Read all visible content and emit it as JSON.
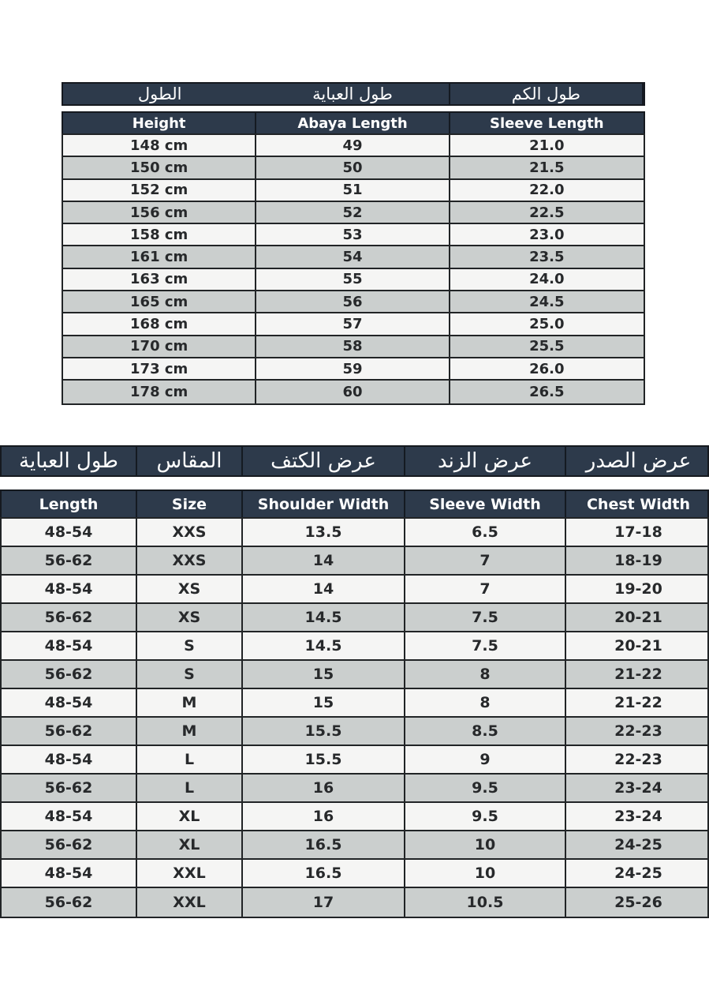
{
  "colors": {
    "header_navy": "#2d3a4b",
    "row_light": "#f5f5f4",
    "row_gray": "#cbcfce",
    "border_dark": "#212426",
    "header_text": "#ffffff",
    "cell_text": "#27292b",
    "page_background": "#ffffff"
  },
  "size_chart_length": {
    "headers_ar": [
      "الطول",
      "طول العباية",
      "طول الكم"
    ],
    "headers_en": [
      "Height",
      "Abaya Length",
      "Sleeve Length"
    ],
    "rows": [
      [
        "148 cm",
        "49",
        "21.0"
      ],
      [
        "150 cm",
        "50",
        "21.5"
      ],
      [
        "152 cm",
        "51",
        "22.0"
      ],
      [
        "156 cm",
        "52",
        "22.5"
      ],
      [
        "158 cm",
        "53",
        "23.0"
      ],
      [
        "161 cm",
        "54",
        "23.5"
      ],
      [
        "163 cm",
        "55",
        "24.0"
      ],
      [
        "165 cm",
        "56",
        "24.5"
      ],
      [
        "168 cm",
        "57",
        "25.0"
      ],
      [
        "170 cm",
        "58",
        "25.5"
      ],
      [
        "173 cm",
        "59",
        "26.0"
      ],
      [
        "178 cm",
        "60",
        "26.5"
      ]
    ]
  },
  "size_chart_width": {
    "headers_ar": [
      "طول العباية",
      "المقاس",
      "عرض الكتف",
      "عرض الزند",
      "عرض الصدر"
    ],
    "headers_en": [
      "Length",
      "Size",
      "Shoulder Width",
      "Sleeve Width",
      "Chest Width"
    ],
    "rows": [
      [
        "48-54",
        "XXS",
        "13.5",
        "6.5",
        "17-18"
      ],
      [
        "56-62",
        "XXS",
        "14",
        "7",
        "18-19"
      ],
      [
        "48-54",
        "XS",
        "14",
        "7",
        "19-20"
      ],
      [
        "56-62",
        "XS",
        "14.5",
        "7.5",
        "20-21"
      ],
      [
        "48-54",
        "S",
        "14.5",
        "7.5",
        "20-21"
      ],
      [
        "56-62",
        "S",
        "15",
        "8",
        "21-22"
      ],
      [
        "48-54",
        "M",
        "15",
        "8",
        "21-22"
      ],
      [
        "56-62",
        "M",
        "15.5",
        "8.5",
        "22-23"
      ],
      [
        "48-54",
        "L",
        "15.5",
        "9",
        "22-23"
      ],
      [
        "56-62",
        "L",
        "16",
        "9.5",
        "23-24"
      ],
      [
        "48-54",
        "XL",
        "16",
        "9.5",
        "23-24"
      ],
      [
        "56-62",
        "XL",
        "16.5",
        "10",
        "24-25"
      ],
      [
        "48-54",
        "XXL",
        "16.5",
        "10",
        "24-25"
      ],
      [
        "56-62",
        "XXL",
        "17",
        "10.5",
        "25-26"
      ]
    ]
  }
}
